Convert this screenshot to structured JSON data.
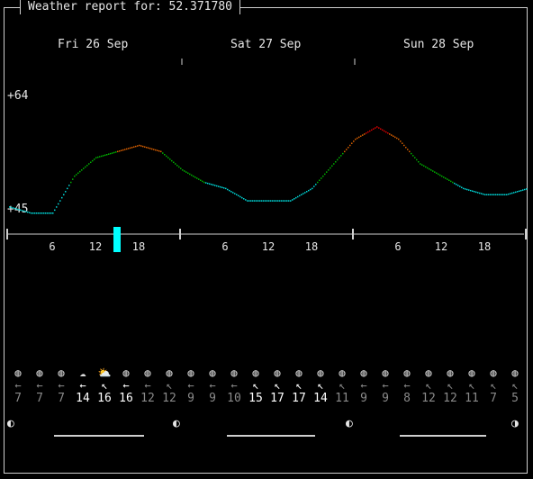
{
  "header": {
    "title": "Weather report for: 52.371780"
  },
  "days": [
    "Fri 26 Sep",
    "Sat 27 Sep",
    "Sun 28 Sep"
  ],
  "y_axis": {
    "max_label": "+64",
    "min_label": "+45"
  },
  "hour_labels": [
    "6",
    "12",
    "18",
    "6",
    "12",
    "18",
    "6",
    "12",
    "18"
  ],
  "colors": {
    "cold": "#00d7d7",
    "mild": "#00af00",
    "warm": "#d75f00",
    "hot": "#d70000",
    "frame": "#cfcfcf",
    "now": "#00ffff"
  },
  "chart_data": {
    "type": "line",
    "title": "",
    "xlabel": "",
    "ylabel": "",
    "ylim": [
      45,
      64
    ],
    "x_hours": [
      0,
      3,
      6,
      9,
      12,
      15,
      18,
      21,
      24,
      27,
      30,
      33,
      36,
      39,
      42,
      45,
      48,
      51,
      54,
      57,
      60,
      63,
      66,
      69,
      72
    ],
    "series": [
      {
        "values": [
          46,
          45,
          45,
          51,
          54,
          55,
          56,
          55,
          52,
          50,
          49,
          47,
          47,
          47,
          49,
          53,
          57,
          59,
          57,
          53,
          51,
          49,
          48,
          48,
          49
        ]
      }
    ],
    "now_hour": 15
  },
  "wind": {
    "icons": [
      "moon-icon",
      "moon-icon",
      "moon-icon",
      "cloud-night-icon",
      "cloud-sun-icon",
      "sun-icon",
      "sun-icon",
      "sun-icon",
      "moon-icon",
      "moon-icon",
      "moon-icon",
      "sun-icon",
      "sun-icon",
      "sun-icon",
      "sun-icon",
      "moon-icon",
      "moon-icon",
      "moon-icon",
      "moon-icon",
      "sun-icon",
      "sun-icon",
      "sun-icon",
      "sun-icon",
      "moon-icon"
    ],
    "arrows": [
      "←",
      "←",
      "←",
      "←",
      "↖",
      "←",
      "←",
      "↖",
      "←",
      "←",
      "←",
      "↖",
      "↖",
      "↖",
      "↖",
      "↖",
      "←",
      "←",
      "←",
      "↖",
      "↖",
      "↖",
      "↖",
      "↖"
    ],
    "speeds": [
      "7",
      "7",
      "7",
      "14",
      "16",
      "16",
      "12",
      "12",
      "9",
      "9",
      "10",
      "15",
      "17",
      "17",
      "14",
      "11",
      "9",
      "9",
      "8",
      "12",
      "12",
      "11",
      "7",
      "5"
    ]
  },
  "moon_phases": [
    "◐",
    "◐",
    "◐",
    "◑"
  ]
}
